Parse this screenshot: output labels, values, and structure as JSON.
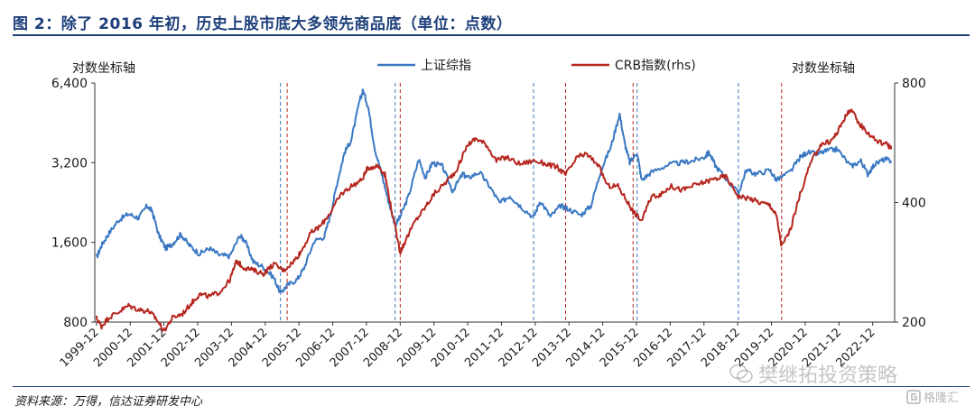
{
  "title": "图 2：除了 2016 年初，历史上股市底大多领先商品底（单位：点数）",
  "source": "资料来源：万得，信达证券研发中心",
  "watermark_main": "樊继拓投资策略",
  "watermark_corner": "格隆汇",
  "chart_data": {
    "type": "line",
    "y_left": {
      "label": "对数坐标轴",
      "scale": "log",
      "ticks": [
        800,
        1600,
        3200,
        6400
      ],
      "tick_labels": [
        "800",
        "1,600",
        "3,200",
        "6,400"
      ],
      "lim": [
        800,
        6400
      ]
    },
    "y_right": {
      "label": "对数坐标轴",
      "scale": "log",
      "ticks": [
        200,
        400,
        800
      ],
      "tick_labels": [
        "200",
        "400",
        "800"
      ],
      "lim": [
        200,
        800
      ]
    },
    "x_labels": [
      "1999-12",
      "2000-12",
      "2001-12",
      "2002-12",
      "2003-12",
      "2004-12",
      "2005-12",
      "2006-12",
      "2007-12",
      "2008-12",
      "2009-12",
      "2010-12",
      "2011-12",
      "2012-12",
      "2013-12",
      "2014-12",
      "2015-12",
      "2016-12",
      "2017-12",
      "2018-12",
      "2019-12",
      "2020-12",
      "2021-12",
      "2022-12"
    ],
    "x_range": [
      1999.9,
      2023.6
    ],
    "legend": {
      "position": "top",
      "entries": [
        "上证综指",
        "CRB指数(rhs)"
      ]
    },
    "colors": {
      "sse": "#3a78c3",
      "crb": "#b5261e"
    },
    "vlines_sse": [
      2005.4,
      2008.8,
      2012.9,
      2015.97,
      2018.97
    ],
    "vlines_crb": [
      2005.6,
      2008.95,
      2013.85,
      2015.85,
      2020.25
    ],
    "series": [
      {
        "name": "上证综指",
        "axis": "left",
        "color": "#3a78c3",
        "points": [
          [
            1999.95,
            1400
          ],
          [
            2000.1,
            1560
          ],
          [
            2000.3,
            1720
          ],
          [
            2000.6,
            1940
          ],
          [
            2000.9,
            2050
          ],
          [
            2001.2,
            1980
          ],
          [
            2001.45,
            2200
          ],
          [
            2001.6,
            2100
          ],
          [
            2001.8,
            1700
          ],
          [
            2002.0,
            1520
          ],
          [
            2002.2,
            1580
          ],
          [
            2002.45,
            1720
          ],
          [
            2002.7,
            1560
          ],
          [
            2003.0,
            1450
          ],
          [
            2003.3,
            1520
          ],
          [
            2003.6,
            1430
          ],
          [
            2003.9,
            1420
          ],
          [
            2004.2,
            1700
          ],
          [
            2004.35,
            1620
          ],
          [
            2004.6,
            1350
          ],
          [
            2004.9,
            1290
          ],
          [
            2005.2,
            1180
          ],
          [
            2005.4,
            1030
          ],
          [
            2005.6,
            1100
          ],
          [
            2005.9,
            1160
          ],
          [
            2006.1,
            1280
          ],
          [
            2006.4,
            1620
          ],
          [
            2006.7,
            1680
          ],
          [
            2006.9,
            2080
          ],
          [
            2007.1,
            2750
          ],
          [
            2007.3,
            3500
          ],
          [
            2007.5,
            3900
          ],
          [
            2007.75,
            5500
          ],
          [
            2007.85,
            6000
          ],
          [
            2008.0,
            5200
          ],
          [
            2008.2,
            3600
          ],
          [
            2008.4,
            2900
          ],
          [
            2008.6,
            2300
          ],
          [
            2008.8,
            1860
          ],
          [
            2008.95,
            2000
          ],
          [
            2009.2,
            2400
          ],
          [
            2009.5,
            3300
          ],
          [
            2009.7,
            2800
          ],
          [
            2009.9,
            3200
          ],
          [
            2010.2,
            3100
          ],
          [
            2010.5,
            2500
          ],
          [
            2010.8,
            2900
          ],
          [
            2010.95,
            2800
          ],
          [
            2011.3,
            2950
          ],
          [
            2011.6,
            2600
          ],
          [
            2011.9,
            2250
          ],
          [
            2012.2,
            2400
          ],
          [
            2012.5,
            2200
          ],
          [
            2012.9,
            1990
          ],
          [
            2013.1,
            2300
          ],
          [
            2013.4,
            2000
          ],
          [
            2013.7,
            2200
          ],
          [
            2013.9,
            2150
          ],
          [
            2014.3,
            2030
          ],
          [
            2014.6,
            2200
          ],
          [
            2014.9,
            3000
          ],
          [
            2015.2,
            3700
          ],
          [
            2015.45,
            4900
          ],
          [
            2015.6,
            3800
          ],
          [
            2015.75,
            3200
          ],
          [
            2015.97,
            3500
          ],
          [
            2016.1,
            2750
          ],
          [
            2016.4,
            2950
          ],
          [
            2016.9,
            3150
          ],
          [
            2017.3,
            3200
          ],
          [
            2017.6,
            3250
          ],
          [
            2017.95,
            3350
          ],
          [
            2018.1,
            3500
          ],
          [
            2018.3,
            3100
          ],
          [
            2018.6,
            2800
          ],
          [
            2018.97,
            2450
          ],
          [
            2019.2,
            3000
          ],
          [
            2019.5,
            2900
          ],
          [
            2019.9,
            3000
          ],
          [
            2020.1,
            2750
          ],
          [
            2020.5,
            2950
          ],
          [
            2020.8,
            3350
          ],
          [
            2021.0,
            3500
          ],
          [
            2021.3,
            3450
          ],
          [
            2021.6,
            3550
          ],
          [
            2021.9,
            3600
          ],
          [
            2022.3,
            3100
          ],
          [
            2022.6,
            3250
          ],
          [
            2022.8,
            2900
          ],
          [
            2023.0,
            3150
          ],
          [
            2023.3,
            3300
          ],
          [
            2023.5,
            3250
          ]
        ]
      },
      {
        "name": "CRB指数(rhs)",
        "axis": "right",
        "color": "#b5261e",
        "points": [
          [
            1999.95,
            205
          ],
          [
            2000.1,
            195
          ],
          [
            2000.3,
            205
          ],
          [
            2000.6,
            212
          ],
          [
            2000.9,
            220
          ],
          [
            2001.2,
            215
          ],
          [
            2001.5,
            213
          ],
          [
            2001.7,
            205
          ],
          [
            2001.95,
            190
          ],
          [
            2002.2,
            205
          ],
          [
            2002.5,
            210
          ],
          [
            2002.8,
            225
          ],
          [
            2003.0,
            235
          ],
          [
            2003.3,
            232
          ],
          [
            2003.6,
            238
          ],
          [
            2003.9,
            255
          ],
          [
            2004.1,
            285
          ],
          [
            2004.3,
            275
          ],
          [
            2004.6,
            270
          ],
          [
            2004.9,
            265
          ],
          [
            2005.2,
            280
          ],
          [
            2005.5,
            270
          ],
          [
            2005.8,
            285
          ],
          [
            2006.0,
            300
          ],
          [
            2006.3,
            335
          ],
          [
            2006.6,
            350
          ],
          [
            2006.9,
            380
          ],
          [
            2007.2,
            420
          ],
          [
            2007.5,
            440
          ],
          [
            2007.8,
            455
          ],
          [
            2008.0,
            490
          ],
          [
            2008.3,
            495
          ],
          [
            2008.5,
            470
          ],
          [
            2008.7,
            380
          ],
          [
            2008.95,
            300
          ],
          [
            2009.1,
            320
          ],
          [
            2009.4,
            360
          ],
          [
            2009.7,
            390
          ],
          [
            2009.95,
            420
          ],
          [
            2010.3,
            450
          ],
          [
            2010.6,
            480
          ],
          [
            2010.95,
            560
          ],
          [
            2011.2,
            580
          ],
          [
            2011.5,
            560
          ],
          [
            2011.8,
            510
          ],
          [
            2012.1,
            520
          ],
          [
            2012.5,
            500
          ],
          [
            2012.9,
            510
          ],
          [
            2013.3,
            500
          ],
          [
            2013.6,
            490
          ],
          [
            2013.85,
            470
          ],
          [
            2014.2,
            520
          ],
          [
            2014.45,
            530
          ],
          [
            2014.8,
            500
          ],
          [
            2015.1,
            440
          ],
          [
            2015.4,
            440
          ],
          [
            2015.7,
            400
          ],
          [
            2015.85,
            380
          ],
          [
            2016.1,
            360
          ],
          [
            2016.4,
            415
          ],
          [
            2016.7,
            420
          ],
          [
            2016.95,
            440
          ],
          [
            2017.3,
            430
          ],
          [
            2017.6,
            440
          ],
          [
            2017.95,
            450
          ],
          [
            2018.3,
            460
          ],
          [
            2018.6,
            465
          ],
          [
            2018.97,
            415
          ],
          [
            2019.3,
            410
          ],
          [
            2019.6,
            400
          ],
          [
            2019.9,
            395
          ],
          [
            2020.1,
            370
          ],
          [
            2020.25,
            310
          ],
          [
            2020.5,
            340
          ],
          [
            2020.8,
            420
          ],
          [
            2021.1,
            500
          ],
          [
            2021.4,
            560
          ],
          [
            2021.7,
            570
          ],
          [
            2021.9,
            600
          ],
          [
            2022.1,
            650
          ],
          [
            2022.3,
            690
          ],
          [
            2022.5,
            640
          ],
          [
            2022.8,
            600
          ],
          [
            2023.1,
            570
          ],
          [
            2023.4,
            560
          ],
          [
            2023.5,
            545
          ]
        ]
      }
    ]
  }
}
